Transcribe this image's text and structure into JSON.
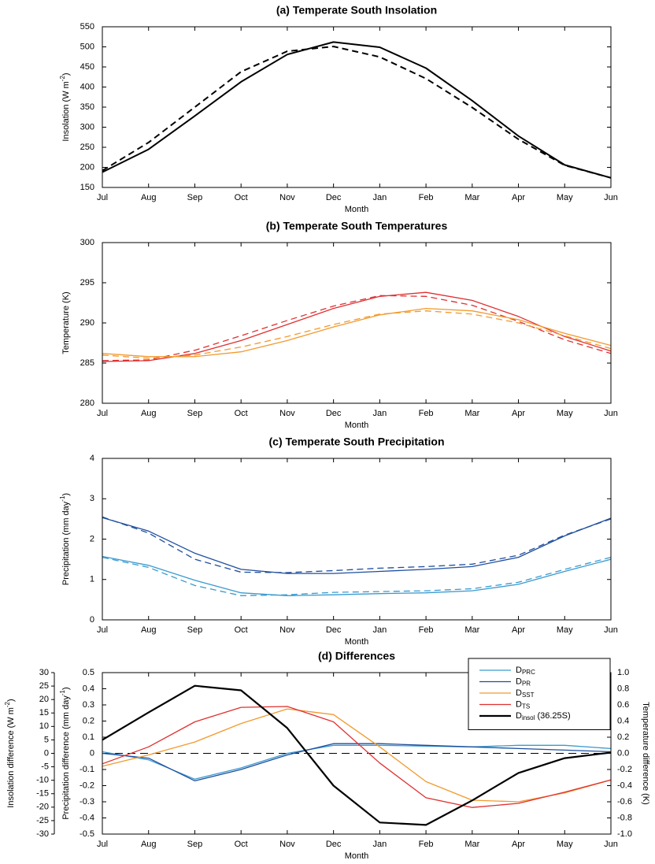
{
  "chart_data": [
    {
      "type": "line",
      "title": "(a) Temperate South Insolation",
      "xlabel": "Month",
      "ylabel": {
        "text": "Insolation (W m",
        "sup": "-2",
        "end": ")"
      },
      "categories": [
        "Jul",
        "Aug",
        "Sep",
        "Oct",
        "Nov",
        "Dec",
        "Jan",
        "Feb",
        "Mar",
        "Apr",
        "May",
        "Jun"
      ],
      "ylim": [
        150,
        550
      ],
      "yticks": [
        150,
        200,
        250,
        300,
        350,
        400,
        450,
        500,
        550
      ],
      "series": [
        {
          "color": "#000000",
          "dash": false,
          "width": 2,
          "values": [
            188,
            245,
            328,
            413,
            481,
            512,
            499,
            447,
            366,
            278,
            206,
            174
          ]
        },
        {
          "color": "#000000",
          "dash": true,
          "width": 2,
          "values": [
            192,
            262,
            350,
            438,
            489,
            501,
            475,
            421,
            349,
            270,
            205,
            174
          ]
        }
      ]
    },
    {
      "type": "line",
      "title": "(b) Temperate South Temperatures",
      "xlabel": "Month",
      "ylabel": {
        "text": "Temperature (K)"
      },
      "categories": [
        "Jul",
        "Aug",
        "Sep",
        "Oct",
        "Nov",
        "Dec",
        "Jan",
        "Feb",
        "Mar",
        "Apr",
        "May",
        "Jun"
      ],
      "ylim": [
        280,
        300
      ],
      "yticks": [
        280,
        285,
        290,
        295,
        300
      ],
      "series": [
        {
          "color": "#e03030",
          "dash": false,
          "width": 1.3,
          "values": [
            285.2,
            285.3,
            286.2,
            287.8,
            289.8,
            291.8,
            293.3,
            293.8,
            292.8,
            290.8,
            288.3,
            286.5
          ]
        },
        {
          "color": "#e03030",
          "dash": true,
          "width": 1.3,
          "values": [
            285.3,
            285.4,
            286.6,
            288.4,
            290.3,
            292.1,
            293.4,
            293.3,
            292.2,
            290.2,
            287.9,
            286.2
          ]
        },
        {
          "color": "#f29a2e",
          "dash": false,
          "width": 1.3,
          "values": [
            286.2,
            285.8,
            285.8,
            286.4,
            287.8,
            289.5,
            291.0,
            291.8,
            291.5,
            290.4,
            288.7,
            287.2
          ]
        },
        {
          "color": "#f29a2e",
          "dash": true,
          "width": 1.3,
          "values": [
            286.0,
            285.6,
            286.0,
            287.0,
            288.3,
            289.8,
            291.1,
            291.5,
            291.1,
            290.0,
            288.4,
            286.8
          ]
        }
      ]
    },
    {
      "type": "line",
      "title": "(c) Temperate South Precipitation",
      "xlabel": "Month",
      "ylabel": {
        "text": "Precipitation (mm day",
        "sup": "-1",
        "end": ")"
      },
      "categories": [
        "Jul",
        "Aug",
        "Sep",
        "Oct",
        "Nov",
        "Dec",
        "Jan",
        "Feb",
        "Mar",
        "Apr",
        "May",
        "Jun"
      ],
      "ylim": [
        0,
        4
      ],
      "yticks": [
        0,
        1,
        2,
        3,
        4
      ],
      "series": [
        {
          "color": "#1f4e9c",
          "dash": false,
          "width": 1.3,
          "values": [
            2.53,
            2.2,
            1.65,
            1.25,
            1.15,
            1.15,
            1.2,
            1.25,
            1.32,
            1.55,
            2.08,
            2.52
          ]
        },
        {
          "color": "#1f4e9c",
          "dash": true,
          "width": 1.3,
          "values": [
            2.55,
            2.15,
            1.5,
            1.18,
            1.17,
            1.22,
            1.28,
            1.32,
            1.38,
            1.6,
            2.1,
            2.5
          ]
        },
        {
          "color": "#3a9ad0",
          "dash": false,
          "width": 1.3,
          "values": [
            1.57,
            1.35,
            0.98,
            0.67,
            0.6,
            0.62,
            0.65,
            0.67,
            0.72,
            0.88,
            1.2,
            1.5
          ]
        },
        {
          "color": "#3a9ad0",
          "dash": true,
          "width": 1.3,
          "values": [
            1.55,
            1.3,
            0.85,
            0.6,
            0.62,
            0.68,
            0.7,
            0.72,
            0.77,
            0.93,
            1.25,
            1.55
          ]
        }
      ]
    },
    {
      "type": "line",
      "title": "(d) Differences",
      "xlabel": "Month",
      "ylabel": {
        "text": "Precipitation difference (mm day",
        "sup": "-1",
        "end": ")"
      },
      "y2label": {
        "text": "Temperature difference (K)"
      },
      "y3label": {
        "text": "Insolation difference (W m",
        "sup": "-2",
        "end": ")"
      },
      "categories": [
        "Jul",
        "Aug",
        "Sep",
        "Oct",
        "Nov",
        "Dec",
        "Jan",
        "Feb",
        "Mar",
        "Apr",
        "May",
        "Jun"
      ],
      "ylim": [
        -0.5,
        0.5
      ],
      "yticks": [
        -0.5,
        -0.4,
        -0.3,
        -0.2,
        -0.1,
        0,
        0.1,
        0.2,
        0.3,
        0.4,
        0.5
      ],
      "y2lim": [
        -1,
        1
      ],
      "y2ticks": [
        {
          "value": -1,
          "label": "-1.0"
        },
        -0.8,
        -0.6,
        -0.4,
        -0.2,
        {
          "value": 0,
          "label": "0.0"
        },
        0.2,
        0.4,
        0.6,
        0.8,
        {
          "value": 1,
          "label": "1.0"
        }
      ],
      "y3lim": [
        -30,
        30
      ],
      "y3ticks": [
        -30,
        -25,
        -20,
        -15,
        -10,
        -5,
        0,
        5,
        10,
        15,
        20,
        25,
        30
      ],
      "reference_line": 0,
      "series": [
        {
          "name": "D",
          "subscript": "PRC",
          "axis": "y",
          "color": "#3a9ad0",
          "width": 1.3,
          "values": [
            0.01,
            -0.04,
            -0.16,
            -0.09,
            0.0,
            0.05,
            0.05,
            0.045,
            0.04,
            0.05,
            0.05,
            0.03
          ]
        },
        {
          "name": "D",
          "subscript": "PR",
          "axis": "y",
          "color": "#1f4e9c",
          "width": 1.3,
          "values": [
            0.0,
            -0.03,
            -0.17,
            -0.1,
            -0.01,
            0.06,
            0.06,
            0.05,
            0.04,
            0.03,
            0.02,
            0.01
          ]
        },
        {
          "name": "D",
          "subscript": "SST",
          "axis": "y2",
          "color": "#f29a2e",
          "width": 1.3,
          "values": [
            -0.16,
            -0.02,
            0.14,
            0.37,
            0.55,
            0.48,
            0.08,
            -0.35,
            -0.58,
            -0.6,
            -0.49,
            -0.33
          ]
        },
        {
          "name": "D",
          "subscript": "TS",
          "axis": "y2",
          "color": "#e03030",
          "width": 1.3,
          "values": [
            -0.13,
            0.08,
            0.39,
            0.57,
            0.58,
            0.39,
            -0.12,
            -0.55,
            -0.67,
            -0.62,
            -0.48,
            -0.33
          ]
        },
        {
          "name": "D",
          "subscript": "insol",
          "suffix": " (36.25S)",
          "axis": "y3",
          "color": "#000000",
          "width": 2.2,
          "values": [
            5,
            15.2,
            25.1,
            23.4,
            9.4,
            -12,
            -25.7,
            -26.6,
            -17.5,
            -7.3,
            -1.8,
            0.3
          ]
        }
      ]
    }
  ]
}
